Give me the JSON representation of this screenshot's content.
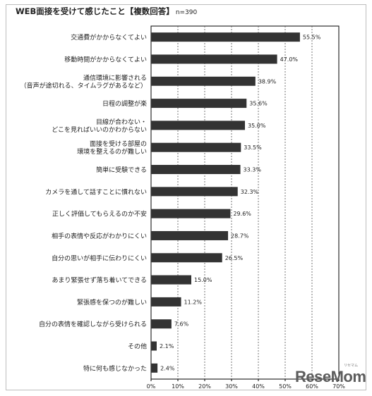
{
  "title": "WEB面接を受けて感じたこと【複数回答】",
  "sample_size": "n=390",
  "logo": {
    "text": "ReseMom",
    "sub": "リセマム"
  },
  "chart_data": {
    "type": "bar",
    "orientation": "horizontal",
    "categories": [
      [
        "交通費がかからなくてよい"
      ],
      [
        "移動時間がかからなくてよい"
      ],
      [
        "通信環境に影響される",
        "（音声が途切れる、タイムラグがあるなど）"
      ],
      [
        "日程の調整が楽"
      ],
      [
        "目線が合わない・",
        "どこを見ればいいのかわからない"
      ],
      [
        "面接を受ける部屋の",
        "環境を整えるのが難しい"
      ],
      [
        "簡単に受験できる"
      ],
      [
        "カメラを通して話すことに慣れない"
      ],
      [
        "正しく評価してもらえるのか不安"
      ],
      [
        "相手の表情や反応がわかりにくい"
      ],
      [
        "自分の思いが相手に伝わりにくい"
      ],
      [
        "あまり緊張せず落ち着いてできる"
      ],
      [
        "緊張感を保つのが難しい"
      ],
      [
        "自分の表情を確認しながら受けられる"
      ],
      [
        "その他"
      ],
      [
        "特に何も感じなかった"
      ]
    ],
    "values": [
      55.5,
      47.0,
      38.9,
      35.6,
      35.0,
      33.5,
      33.3,
      32.3,
      29.6,
      28.7,
      26.5,
      15.0,
      11.2,
      7.6,
      2.1,
      2.4
    ],
    "value_labels": [
      "55.5%",
      "47.0%",
      "38.9%",
      "35.6%",
      "35.0%",
      "33.5%",
      "33.3%",
      "32.3%",
      "29.6%",
      "28.7%",
      "26.5%",
      "15.0%",
      "11.2%",
      "7.6%",
      "2.1%",
      "2.4%"
    ],
    "x_ticks": [
      0,
      10,
      20,
      30,
      40,
      50,
      60,
      70
    ],
    "x_tick_labels": [
      "0%",
      "10%",
      "20%",
      "30%",
      "40%",
      "50%",
      "60%",
      "70%"
    ],
    "xlim": [
      0,
      70
    ],
    "grid": "vertical dashed",
    "bar_color": "#333333"
  }
}
